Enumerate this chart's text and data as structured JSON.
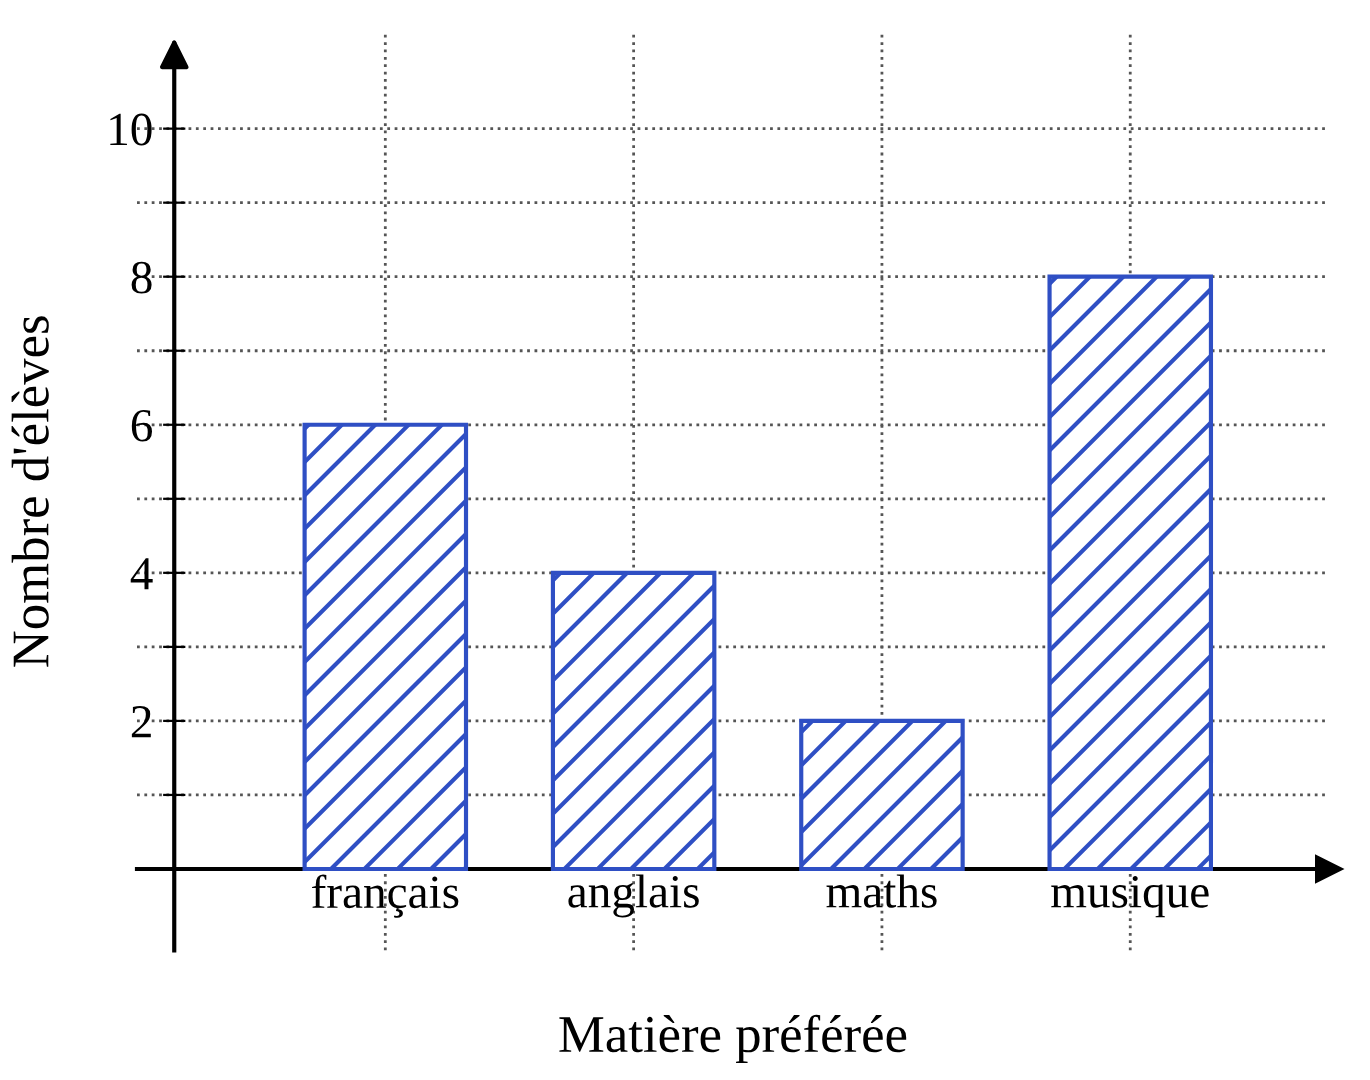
{
  "chart_data": {
    "type": "bar",
    "xlabel": "Matière préférée",
    "ylabel": "Nombre d'élèves",
    "categories": [
      "français",
      "anglais",
      "maths",
      "musique"
    ],
    "values": [
      6,
      4,
      2,
      8
    ],
    "color": "#2f4fc4",
    "ylim": [
      -1.1,
      11.3
    ],
    "yticks": [
      {
        "value": 1,
        "label": null
      },
      2,
      {
        "value": 3,
        "label": null
      },
      4,
      {
        "value": 5,
        "label": null
      },
      6,
      {
        "value": 7,
        "label": null
      },
      8,
      {
        "value": 9,
        "label": null
      },
      10
    ],
    "grid": true
  }
}
